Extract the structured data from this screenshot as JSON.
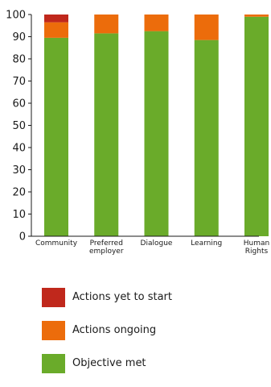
{
  "chart_data": {
    "type": "bar",
    "stacked": true,
    "categories": [
      "Community",
      "Preferred employer",
      "Dialogue",
      "Learning",
      "Human Rights"
    ],
    "category_label_lines": [
      [
        "Community"
      ],
      [
        "Preferred",
        "employer"
      ],
      [
        "Dialogue"
      ],
      [
        "Learning"
      ],
      [
        "Human",
        "Rights"
      ]
    ],
    "series": [
      {
        "name": "Objective met",
        "color": "#6aab2a",
        "values": [
          89.5,
          91.5,
          92.5,
          88.5,
          99
        ]
      },
      {
        "name": "Actions ongoing",
        "color": "#ec6c0b",
        "values": [
          7,
          8.5,
          7.5,
          11.5,
          1
        ]
      },
      {
        "name": "Actions yet to start",
        "color": "#c0281c",
        "values": [
          3.5,
          0,
          0,
          0,
          0
        ]
      }
    ],
    "legend_order": [
      2,
      1,
      0
    ],
    "yticks": [
      0,
      10,
      20,
      30,
      40,
      50,
      60,
      70,
      80,
      90,
      100
    ],
    "ylim": [
      0,
      100
    ],
    "grid": false,
    "legend_position": "bottom",
    "xlabel": "",
    "ylabel": ""
  }
}
